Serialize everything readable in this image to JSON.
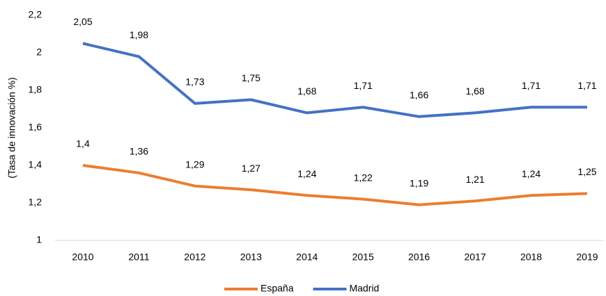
{
  "chart_data": {
    "type": "line",
    "y_label": "(Tasa de innovación %)",
    "categories": [
      "2010",
      "2011",
      "2012",
      "2013",
      "2014",
      "2015",
      "2016",
      "2017",
      "2018",
      "2019"
    ],
    "series": [
      {
        "name": "España",
        "color": "#ed7d31",
        "values": [
          1.4,
          1.36,
          1.29,
          1.27,
          1.24,
          1.22,
          1.19,
          1.21,
          1.24,
          1.25
        ],
        "value_labels": [
          "1,4",
          "1,36",
          "1,29",
          "1,27",
          "1,24",
          "1,22",
          "1,19",
          "1,21",
          "1,24",
          "1,25"
        ]
      },
      {
        "name": "Madrid",
        "color": "#4472c4",
        "values": [
          2.05,
          1.98,
          1.73,
          1.75,
          1.68,
          1.71,
          1.66,
          1.68,
          1.71,
          1.71
        ],
        "value_labels": [
          "2,05",
          "1,98",
          "1,73",
          "1,75",
          "1,68",
          "1,71",
          "1,66",
          "1,68",
          "1,71",
          "1,71"
        ]
      }
    ],
    "ylim": [
      1,
      2.2
    ],
    "yticks": [
      1,
      {
        "value": 1.2,
        "label": "1,2"
      },
      {
        "value": 1.4,
        "label": "1,4"
      },
      {
        "value": 1.6,
        "label": "1,6"
      },
      {
        "value": 1.8,
        "label": "1,8"
      },
      2,
      {
        "value": 2.2,
        "label": "2,2"
      }
    ],
    "grid": false,
    "legend": "bottom"
  }
}
